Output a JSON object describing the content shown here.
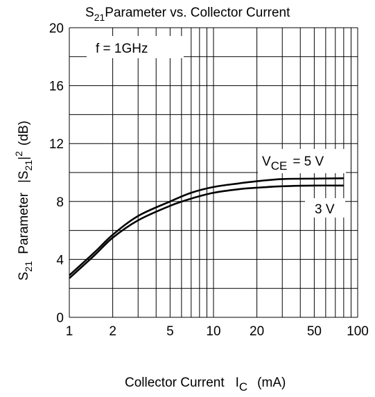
{
  "chart_data": {
    "type": "line",
    "title": {
      "main": "S",
      "sub": "21",
      "rest": "Parameter vs. Collector Current"
    },
    "xlabel": {
      "main": "Collector Current",
      "sym": "I",
      "sub": "C",
      "unit": "(mA)"
    },
    "ylabel": {
      "s": "S",
      "s_sub": "21",
      "param": "Parameter",
      "bar1": "|S",
      "bar_sub": "21",
      "bar2": "|",
      "sup": "2",
      "unit": "(dB)"
    },
    "x_scale": "log",
    "xlim": [
      1,
      100
    ],
    "ylim": [
      0,
      20
    ],
    "x_ticks": [
      1,
      2,
      5,
      10,
      20,
      50,
      100
    ],
    "x_tick_labels": [
      "1",
      "2",
      "5",
      "10",
      "20",
      "50",
      "100"
    ],
    "y_ticks": [
      0,
      4,
      8,
      12,
      16,
      20
    ],
    "y_tick_labels": [
      "0",
      "4",
      "8",
      "12",
      "16",
      "20"
    ],
    "grid": true,
    "annotations": {
      "condition": "f = 1GHz",
      "vce_symbol": "V",
      "vce_sub": "CE",
      "vce_value": "= 5 V",
      "v3_label": "3 V"
    },
    "series": [
      {
        "name": "V_CE = 5 V",
        "x": [
          1,
          1.5,
          2,
          3,
          5,
          7,
          10,
          15,
          20,
          30,
          50,
          80
        ],
        "y": [
          2.9,
          4.5,
          5.7,
          7.0,
          8.0,
          8.6,
          9.0,
          9.25,
          9.4,
          9.55,
          9.58,
          9.6
        ]
      },
      {
        "name": "V_CE = 3 V",
        "x": [
          1,
          1.5,
          2,
          3,
          5,
          7,
          10,
          15,
          20,
          30,
          50,
          80
        ],
        "y": [
          2.7,
          4.3,
          5.5,
          6.7,
          7.7,
          8.2,
          8.6,
          8.85,
          8.95,
          9.05,
          9.1,
          9.1
        ]
      }
    ]
  }
}
